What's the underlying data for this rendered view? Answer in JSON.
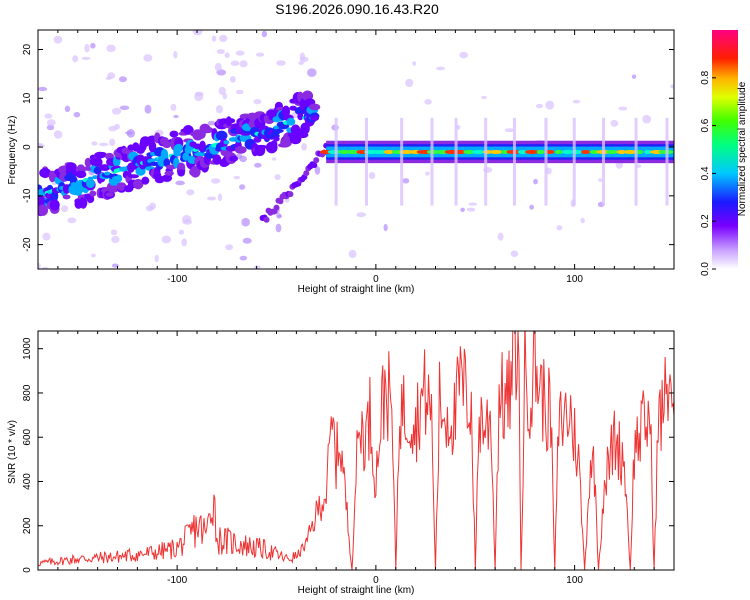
{
  "title": "S196.2026.090.16.43.R20",
  "chart_data": [
    {
      "type": "heatmap",
      "xlabel": "Height of straight line (km)",
      "ylabel": "Frequency (Hz)",
      "xlim": [
        -170,
        150
      ],
      "ylim": [
        -25,
        24
      ],
      "xticks": [
        -100,
        0,
        100
      ],
      "yticks": [
        -20,
        -10,
        0,
        10,
        20
      ],
      "colorbar": {
        "label": "Normalized spectral amplitude",
        "range": [
          0,
          1
        ],
        "ticks": [
          "0.0",
          "0.2",
          "0.4",
          "0.6",
          "0.8"
        ]
      },
      "ridge_segments": [
        {
          "x": [
            -170,
            -140,
            -115,
            -95,
            -80,
            -65,
            -50,
            -40,
            -30
          ],
          "freq": [
            -10,
            -6,
            -3,
            -1,
            0.5,
            2,
            4,
            6,
            6
          ]
        },
        {
          "x": [
            -57,
            -45,
            -35,
            -25
          ],
          "freq": [
            -15,
            -10,
            -5,
            0
          ]
        },
        {
          "x": [
            -25,
            0,
            50,
            100,
            150
          ],
          "freq": [
            -1,
            -1,
            -1,
            -1,
            -1
          ]
        }
      ]
    },
    {
      "type": "line",
      "xlabel": "Height of straight line (km)",
      "ylabel": "SNR (10 * v/v)",
      "xlim": [
        -170,
        150
      ],
      "ylim": [
        0,
        1080
      ],
      "xticks": [
        -100,
        0,
        100
      ],
      "yticks": [
        0,
        200,
        400,
        600,
        800,
        1000
      ],
      "series": [
        {
          "name": "SNR",
          "color": "#ee3333",
          "x": [
            -170,
            -160,
            -150,
            -140,
            -130,
            -120,
            -110,
            -100,
            -95,
            -90,
            -85,
            -82,
            -80,
            -75,
            -70,
            -65,
            -60,
            -55,
            -50,
            -45,
            -40,
            -35,
            -30,
            -28,
            -25,
            -22,
            -20,
            -18,
            -15,
            -12,
            -10,
            -8,
            -5,
            -3,
            0,
            2,
            5,
            8,
            10,
            12,
            15,
            18,
            20,
            22,
            25,
            28,
            30,
            32,
            35,
            38,
            40,
            42,
            45,
            48,
            50,
            52,
            55,
            58,
            60,
            62,
            65,
            68,
            70,
            72,
            73,
            75,
            78,
            80,
            82,
            85,
            88,
            90,
            92,
            95,
            98,
            100,
            102,
            105,
            108,
            110,
            112,
            115,
            118,
            120,
            122,
            125,
            128,
            130,
            132,
            135,
            138,
            140,
            142,
            145,
            148,
            150
          ],
          "values": [
            30,
            40,
            50,
            55,
            60,
            70,
            80,
            100,
            140,
            200,
            160,
            380,
            140,
            130,
            120,
            110,
            100,
            90,
            70,
            50,
            60,
            120,
            250,
            300,
            350,
            650,
            500,
            600,
            300,
            0,
            450,
            650,
            600,
            700,
            400,
            650,
            850,
            700,
            0,
            750,
            700,
            720,
            650,
            750,
            800,
            700,
            0,
            750,
            700,
            700,
            680,
            850,
            800,
            750,
            0,
            700,
            650,
            680,
            0,
            800,
            750,
            800,
            1080,
            850,
            0,
            900,
            800,
            950,
            850,
            750,
            700,
            0,
            650,
            700,
            700,
            600,
            500,
            0,
            500,
            450,
            0,
            400,
            500,
            600,
            550,
            500,
            0,
            550,
            600,
            650,
            700,
            0,
            650,
            750,
            900,
            700
          ]
        }
      ]
    }
  ]
}
